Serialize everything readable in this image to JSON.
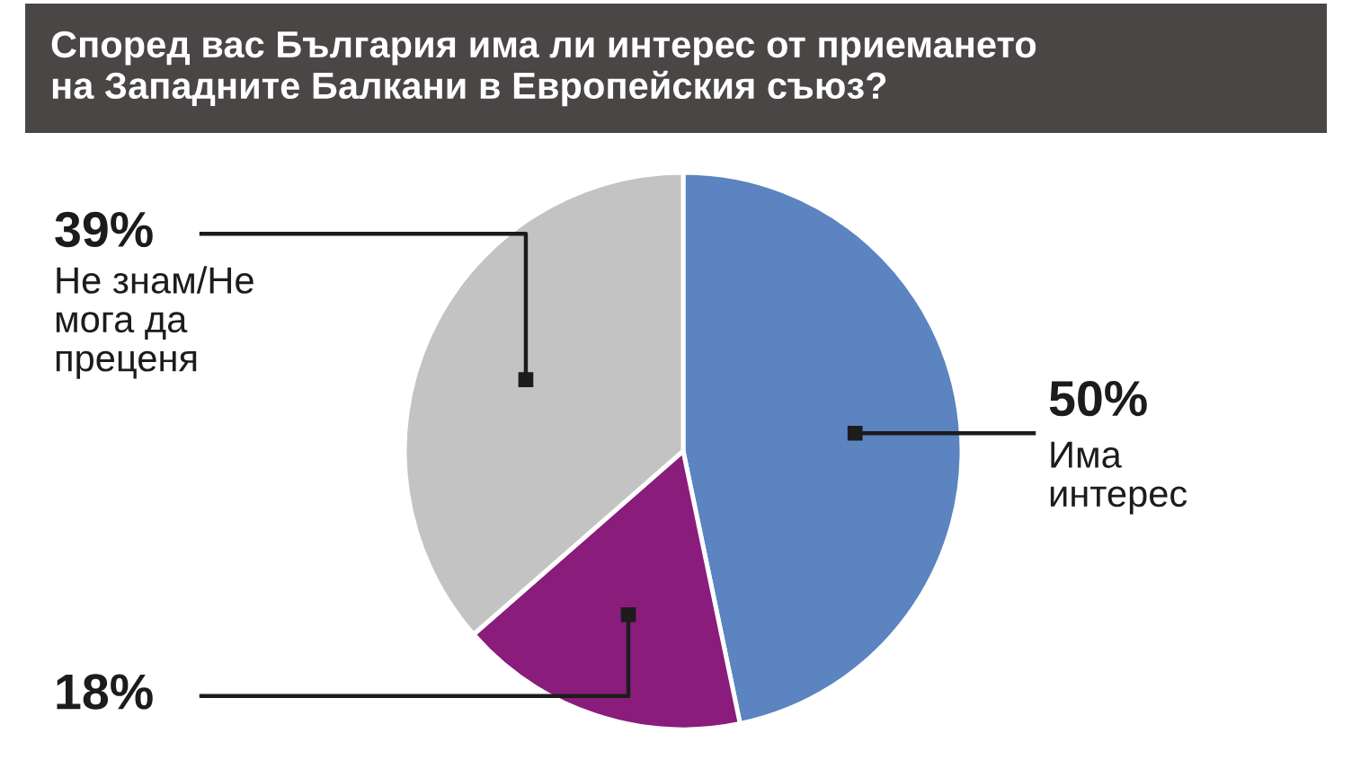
{
  "chart_data": {
    "type": "pie",
    "title": "Според вас България има ли интерес от приемането на Западните Балкани в Европейския съюз?",
    "categories": [
      "Има интерес",
      null,
      "Не знам/Не мога да преценя"
    ],
    "values": [
      50,
      18,
      39
    ],
    "colors": [
      "#5b84c0",
      "#8a1c7c",
      "#c3c3c3"
    ],
    "value_labels": [
      "50%",
      "18%",
      "39%"
    ]
  }
}
